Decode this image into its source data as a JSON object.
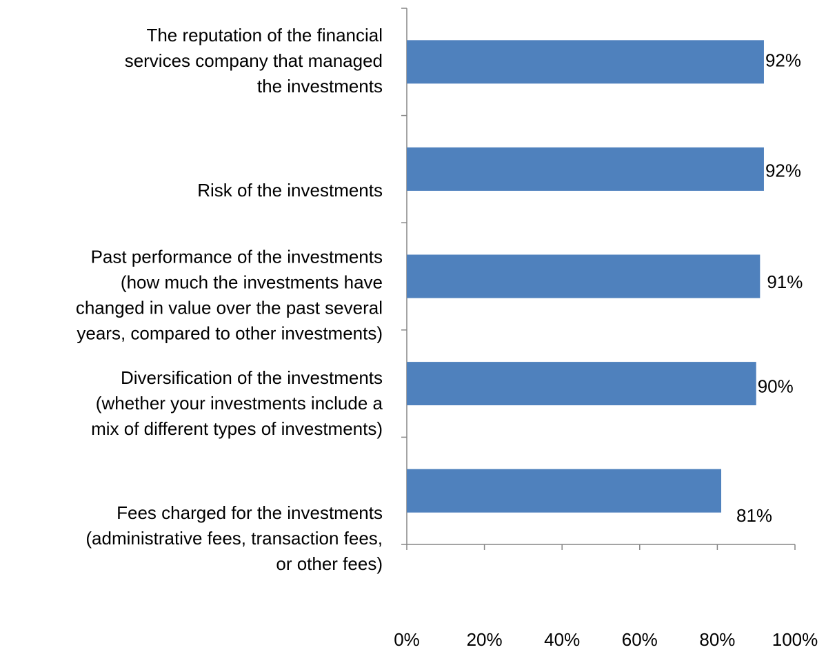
{
  "chart_data": {
    "type": "barh",
    "categories": [
      [
        "The reputation of the financial",
        "services company that managed",
        "the investments"
      ],
      [
        "Risk of the investments"
      ],
      [
        "Past performance of the investments",
        "(how much the investments have",
        "changed in value over the past several",
        "years, compared to other investments)"
      ],
      [
        "Diversification of the investments",
        "(whether your investments include a",
        "mix of different types of investments)"
      ],
      [
        "Fees charged for the investments",
        "(administrative fees, transaction fees,",
        "or other fees)"
      ]
    ],
    "values": [
      92,
      92,
      91,
      90,
      81
    ],
    "value_labels": [
      "92%",
      "92%",
      "91%",
      "90%",
      "81%"
    ],
    "color": "#4f81bd",
    "xlim": [
      0,
      100
    ],
    "xticks": [
      {
        "value": 0,
        "label": "0%"
      },
      {
        "value": 20,
        "label": "20%"
      },
      {
        "value": 40,
        "label": "40%"
      },
      {
        "value": 60,
        "label": "60%"
      },
      {
        "value": 80,
        "label": "80%"
      },
      {
        "value": 100,
        "label": "100%"
      }
    ],
    "grid": false
  }
}
